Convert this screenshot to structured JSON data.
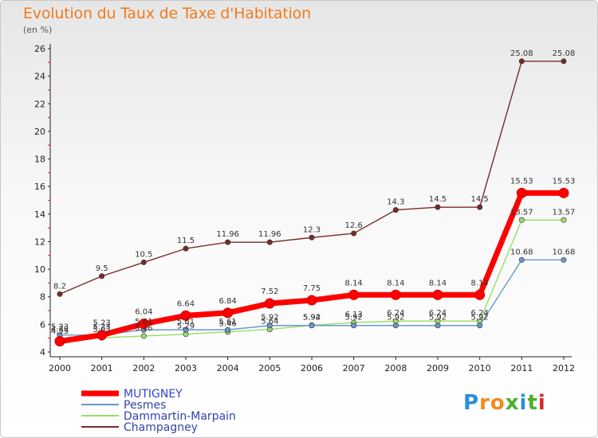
{
  "title": "Evolution du Taux de Taxe d'Habitation",
  "unit": "(en %)",
  "logo_text": "Proxiti",
  "chart_data": {
    "type": "line",
    "title": "Evolution du Taux de Taxe d'Habitation",
    "ylabel": "(en %)",
    "xlabel": "",
    "ylim": [
      4,
      26
    ],
    "yticks": [
      4,
      6,
      8,
      10,
      12,
      14,
      16,
      18,
      20,
      22,
      24,
      26
    ],
    "grid": false,
    "legend_position": "bottom-left",
    "x": [
      "2000",
      "2001",
      "2002",
      "2003",
      "2004",
      "2005",
      "2006",
      "2007",
      "2008",
      "2009",
      "2010",
      "2011",
      "2012"
    ],
    "series": [
      {
        "name": "MUTIGNEY",
        "color": "#ff0000",
        "values": [
          4.78,
          5.23,
          6.04,
          6.64,
          6.84,
          7.52,
          7.75,
          8.14,
          8.14,
          8.14,
          8.14,
          15.53,
          15.53
        ],
        "labels": [
          "4.78",
          "5.23",
          "6.04",
          "6.64",
          "6.84",
          "7.52",
          "7.75",
          "8.14",
          "8.14",
          "8.14",
          "8.14",
          "15.53",
          "15.53"
        ]
      },
      {
        "name": "Pesmes",
        "color": "#6699cc",
        "values": [
          5.23,
          5.23,
          5.61,
          5.61,
          5.61,
          5.92,
          5.92,
          5.92,
          5.92,
          5.92,
          5.92,
          10.68,
          10.68
        ],
        "labels": [
          "5.23",
          "5.23",
          "5.61",
          "5.61",
          "5.61",
          "5.92",
          "5.92",
          "5.92",
          "5.92",
          "5.92",
          "5.92",
          "10.68",
          "10.68"
        ]
      },
      {
        "name": "Dammartin-Marpain",
        "color": "#99dd66",
        "values": [
          4.93,
          5.03,
          5.16,
          5.29,
          5.46,
          5.64,
          5.94,
          6.13,
          6.24,
          6.24,
          6.24,
          13.57,
          13.57
        ],
        "labels": [
          "4.93",
          "5.03",
          "5.16",
          "5.29",
          "5.46",
          "5.64",
          "5.94",
          "6.13",
          "6.24",
          "6.24",
          "6.24",
          "13.57",
          "13.57"
        ]
      },
      {
        "name": "Champagney",
        "color": "#7a2a2a",
        "values": [
          8.2,
          9.5,
          10.5,
          11.5,
          11.96,
          11.96,
          12.3,
          12.6,
          14.3,
          14.5,
          14.5,
          25.08,
          25.08
        ],
        "labels": [
          "8.2",
          "9.5",
          "10.5",
          "11.5",
          "11.96",
          "11.96",
          "12.3",
          "12.6",
          "14.3",
          "14.5",
          "14.5",
          "25.08",
          "25.08"
        ]
      }
    ]
  }
}
